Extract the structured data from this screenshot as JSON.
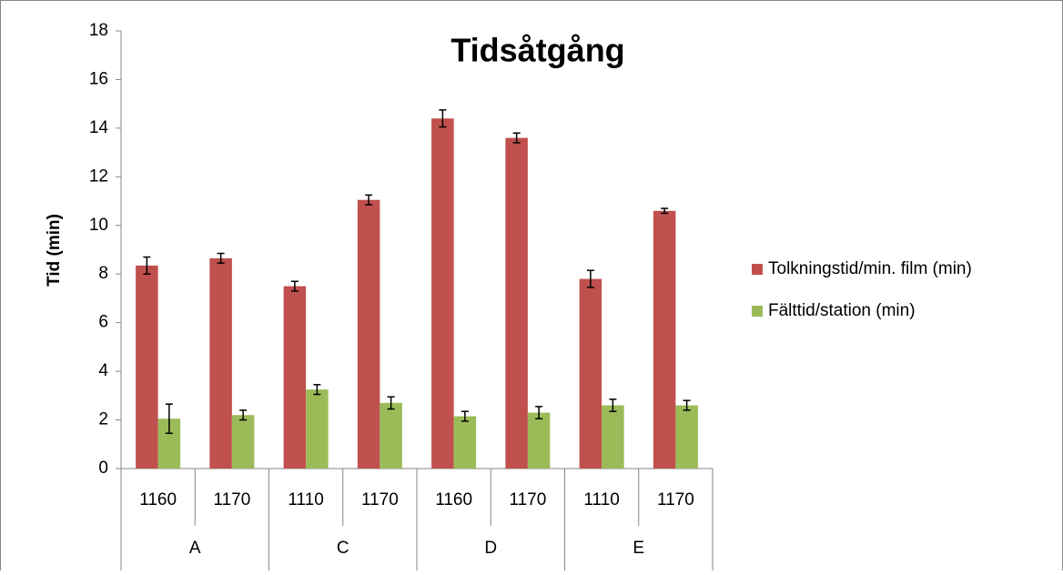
{
  "chart_data": {
    "type": "bar",
    "title": "Tidsåtgång",
    "y_label": "Tid (min)",
    "category_groups": [
      {
        "label": "A",
        "categories": [
          "1160",
          "1170"
        ]
      },
      {
        "label": "C",
        "categories": [
          "1110",
          "1170"
        ]
      },
      {
        "label": "D",
        "categories": [
          "1160",
          "1170"
        ]
      },
      {
        "label": "E",
        "categories": [
          "1110",
          "1170"
        ]
      }
    ],
    "series": [
      {
        "name": "Tolkningstid/min. film (min)",
        "color": "#c0504d",
        "values": [
          8.35,
          8.65,
          7.5,
          11.05,
          14.4,
          13.6,
          7.8,
          10.6
        ],
        "errors": [
          0.35,
          0.2,
          0.2,
          0.2,
          0.35,
          0.2,
          0.35,
          0.1
        ]
      },
      {
        "name": "Fälttid/station (min)",
        "color": "#9bbb59",
        "values": [
          2.05,
          2.2,
          3.25,
          2.7,
          2.15,
          2.3,
          2.6,
          2.6
        ],
        "errors": [
          0.6,
          0.2,
          0.2,
          0.25,
          0.2,
          0.25,
          0.25,
          0.2
        ]
      }
    ],
    "ylim": [
      0,
      18
    ],
    "yticks": [
      0,
      2,
      4,
      6,
      8,
      10,
      12,
      14,
      16,
      18
    ],
    "legend": "right"
  }
}
